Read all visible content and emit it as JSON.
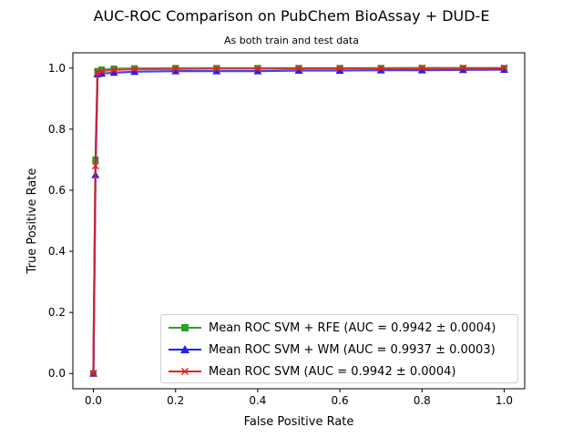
{
  "chart_data": {
    "type": "line",
    "title": "AUC-ROC Comparison on PubChem BioAssay + DUD-E",
    "subtitle": "As both train and test data",
    "xlabel": "False Positive Rate",
    "ylabel": "True Positive Rate",
    "xlim": [
      -0.05,
      1.05
    ],
    "ylim": [
      -0.05,
      1.05
    ],
    "xticks": [
      "0.0",
      "0.2",
      "0.4",
      "0.6",
      "0.8",
      "1.0"
    ],
    "yticks": [
      "0.0",
      "0.2",
      "0.4",
      "0.6",
      "0.8",
      "1.0"
    ],
    "grid": false,
    "legend_position": "bottom-right",
    "series": [
      {
        "name": "Mean ROC SVM + RFE (AUC = 0.9942 ± 0.0004)",
        "color": "#2ca02c",
        "marker": "square",
        "x": [
          0.0,
          0.005,
          0.01,
          0.02,
          0.05,
          0.1,
          0.2,
          0.3,
          0.4,
          0.5,
          0.6,
          0.7,
          0.8,
          0.9,
          1.0
        ],
        "y": [
          0.0,
          0.7,
          0.99,
          0.995,
          0.998,
          0.999,
          1.0,
          1.0,
          1.0,
          1.0,
          1.0,
          1.0,
          1.0,
          1.0,
          1.0
        ]
      },
      {
        "name": "Mean ROC SVM + WM (AUC = 0.9937 ± 0.0003)",
        "color": "#1f1fff",
        "marker": "triangle",
        "x": [
          0.0,
          0.005,
          0.01,
          0.02,
          0.05,
          0.1,
          0.2,
          0.3,
          0.4,
          0.5,
          0.6,
          0.7,
          0.8,
          0.9,
          1.0
        ],
        "y": [
          0.0,
          0.65,
          0.98,
          0.982,
          0.985,
          0.988,
          0.99,
          0.99,
          0.99,
          0.992,
          0.992,
          0.993,
          0.993,
          0.994,
          0.995
        ]
      },
      {
        "name": "Mean ROC SVM (AUC = 0.9942 ± 0.0004)",
        "color": "#e82020",
        "marker": "x",
        "x": [
          0.0,
          0.005,
          0.01,
          0.02,
          0.05,
          0.1,
          0.2,
          0.3,
          0.4,
          0.5,
          0.6,
          0.7,
          0.8,
          0.9,
          1.0
        ],
        "y": [
          0.0,
          0.68,
          0.985,
          0.99,
          0.994,
          0.996,
          0.997,
          0.998,
          0.998,
          0.999,
          0.999,
          0.999,
          1.0,
          1.0,
          1.0
        ]
      }
    ]
  }
}
